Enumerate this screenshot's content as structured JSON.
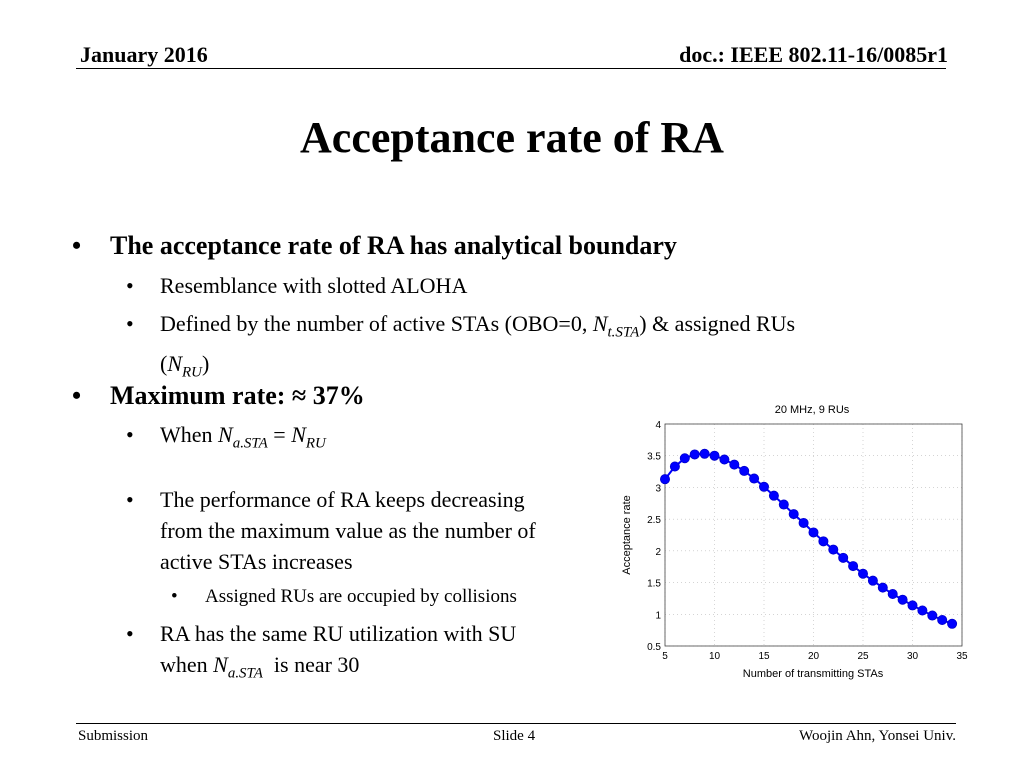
{
  "header": {
    "date": "January 2016",
    "doc": "doc.: IEEE 802.11-16/0085r1"
  },
  "title": "Acceptance rate of RA",
  "bullets": {
    "b1": "The acceptance rate of RA has analytical boundary",
    "b1_1": "Resemblance with slotted ALOHA",
    "b1_2_pre": "Defined by the number of active STAs (OBO=0, ",
    "b1_2_var": "N",
    "b1_2_sub": "t.STA",
    "b1_2_mid": ") & assigned RUs",
    "b1_2_open": "(",
    "b1_2_var2": "N",
    "b1_2_sub2": "RU",
    "b1_2_close": ")",
    "b2": "Maximum rate: ≈ 37%",
    "b2_1_pre": "When ",
    "b2_1_var": "N",
    "b2_1_sub": "a.STA",
    "b2_1_eq": " = ",
    "b2_1_var2": "N",
    "b2_1_sub2": "RU",
    "b2_2_l1": "The performance of RA keeps decreasing",
    "b2_2_l2": "from the maximum value as the number of",
    "b2_2_l3": "active STAs increases",
    "b2_2_1": "Assigned RUs are occupied by collisions",
    "b2_3_l1": "RA has the same RU utilization with SU",
    "b2_3_pre": "when ",
    "b2_3_var": "N",
    "b2_3_sub": "a.STA",
    "b2_3_post": "  is near 30"
  },
  "footer": {
    "left": "Submission",
    "center": "Slide 4",
    "right": "Woojin Ahn, Yonsei Univ."
  },
  "chart_data": {
    "type": "line",
    "title": "20 MHz, 9 RUs",
    "xlabel": "Number of transmitting STAs",
    "ylabel": "Acceptance rate",
    "xlim": [
      5,
      35
    ],
    "ylim": [
      0.5,
      4
    ],
    "xticks": [
      5,
      10,
      15,
      20,
      25,
      30,
      35
    ],
    "yticks": [
      0.5,
      1,
      1.5,
      2,
      2.5,
      3,
      3.5,
      4
    ],
    "grid": true,
    "marker_color": "#0000ff",
    "x": [
      5,
      6,
      7,
      8,
      9,
      10,
      11,
      12,
      13,
      14,
      15,
      16,
      17,
      18,
      19,
      20,
      21,
      22,
      23,
      24,
      25,
      26,
      27,
      28,
      29,
      30,
      31,
      32,
      33,
      34
    ],
    "values": [
      3.13,
      3.33,
      3.46,
      3.52,
      3.53,
      3.5,
      3.44,
      3.36,
      3.26,
      3.14,
      3.01,
      2.87,
      2.73,
      2.58,
      2.44,
      2.29,
      2.15,
      2.02,
      1.89,
      1.76,
      1.64,
      1.53,
      1.42,
      1.32,
      1.23,
      1.14,
      1.06,
      0.98,
      0.91,
      0.85
    ]
  }
}
